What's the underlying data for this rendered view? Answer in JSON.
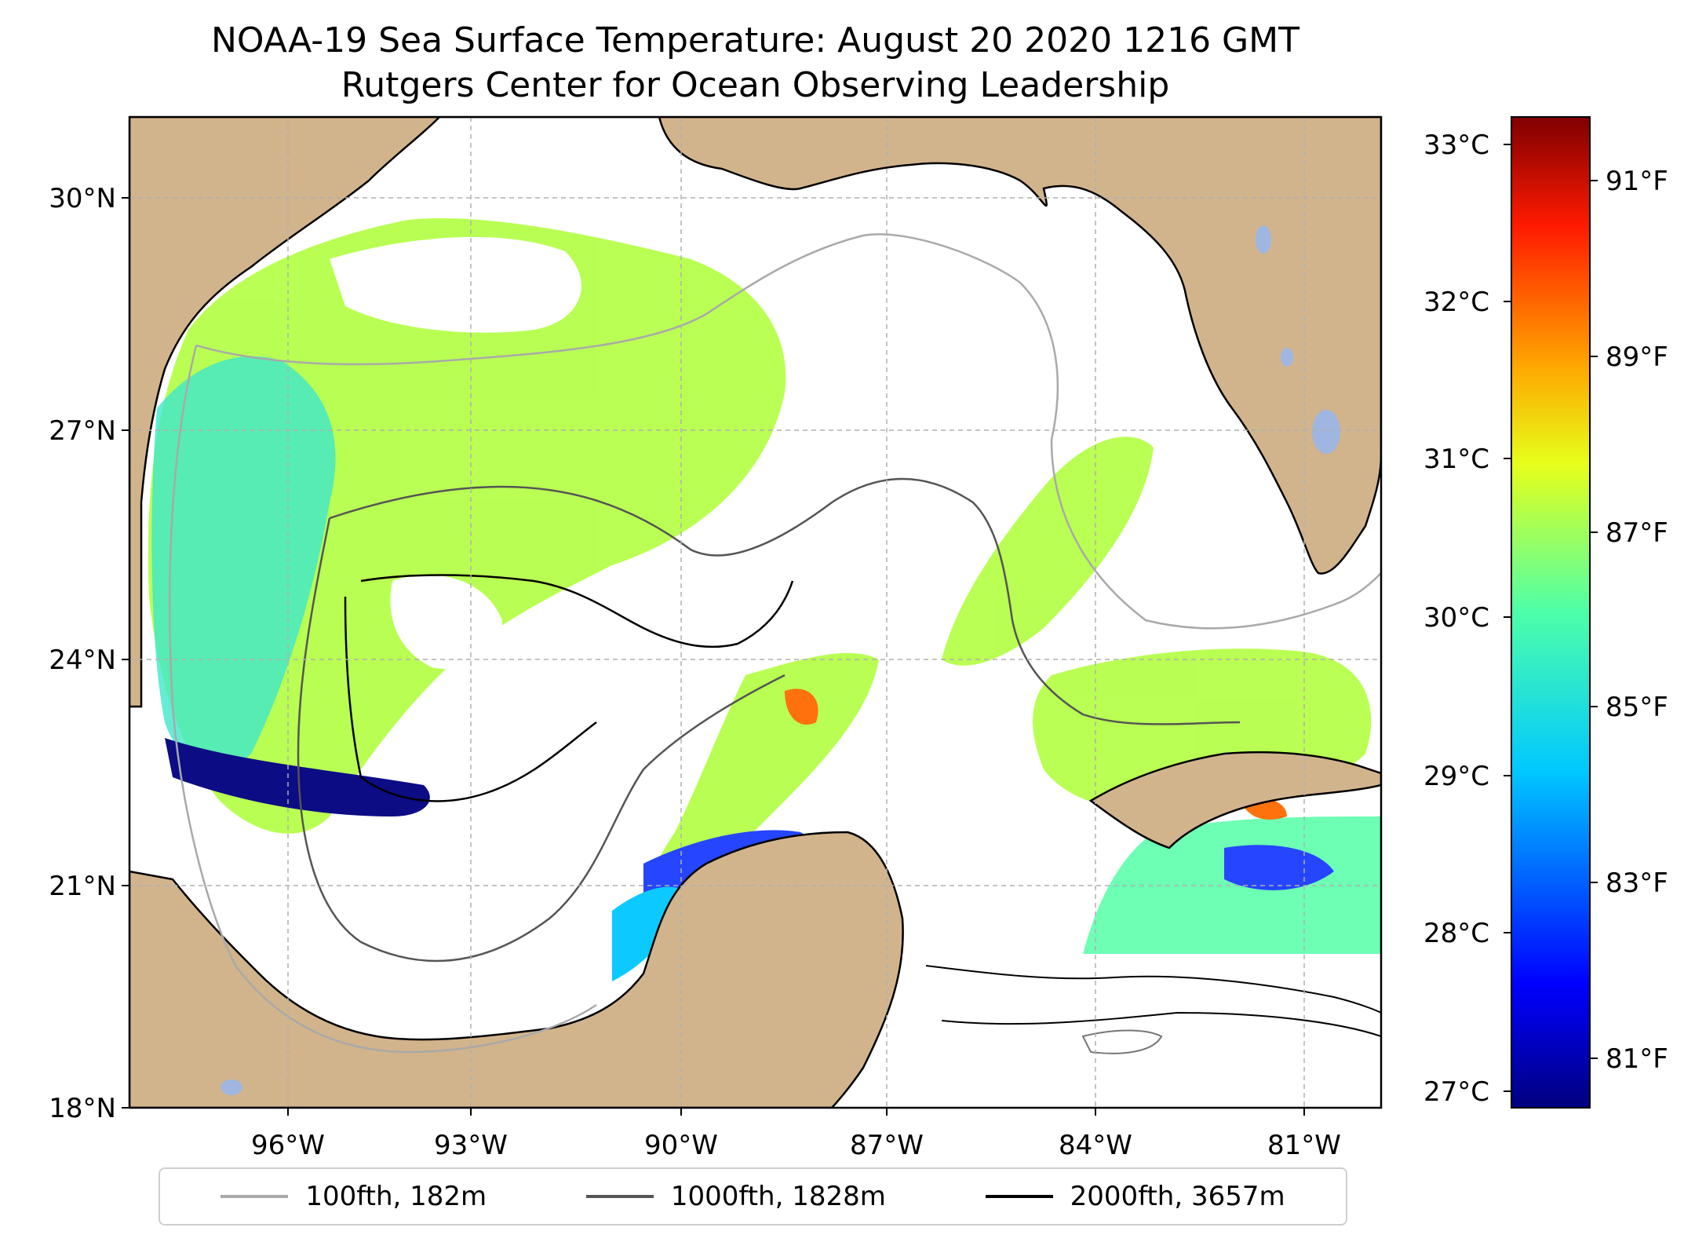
{
  "title": {
    "line1": "NOAA-19 Sea Surface Temperature: August 20 2020 1216 GMT",
    "line2": "Rutgers Center for Ocean Observing Leadership"
  },
  "map": {
    "lon_labels": [
      "96°W",
      "93°W",
      "90°W",
      "87°W",
      "84°W",
      "81°W"
    ],
    "lat_labels": [
      "30°N",
      "27°N",
      "24°N",
      "21°N",
      "18°N"
    ],
    "land_color": "#d2b48c",
    "no_data_color": "#ffffff",
    "grid": true
  },
  "colorbar": {
    "celsius_labels": [
      "33°C",
      "32°C",
      "31°C",
      "30°C",
      "29°C",
      "28°C",
      "27°C"
    ],
    "fahrenheit_labels": [
      "91°F",
      "89°F",
      "87°F",
      "85°F",
      "83°F",
      "81°F"
    ],
    "colormap": "jet",
    "range_celsius": [
      26.9,
      33.2
    ]
  },
  "legend": {
    "items": [
      {
        "label": "100fth, 182m",
        "color": "#a9a9a9"
      },
      {
        "label": "1000fth, 1828m",
        "color": "#555555"
      },
      {
        "label": "2000fth, 3657m",
        "color": "#000000"
      }
    ]
  }
}
